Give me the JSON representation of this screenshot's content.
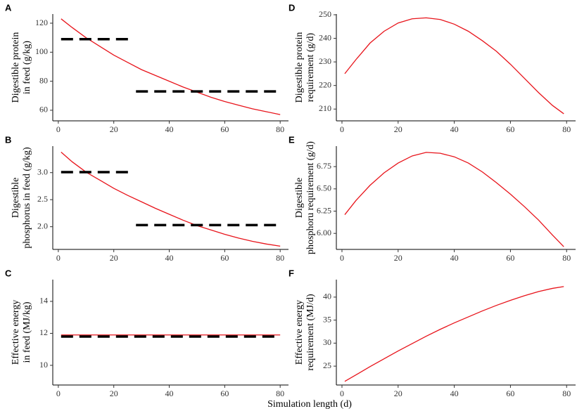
{
  "chart_data": [
    {
      "type": "line",
      "panel": "A",
      "ylabel": [
        "Digestible protein",
        "in feed (g/kg)"
      ],
      "xlim": [
        -2,
        83
      ],
      "ylim": [
        52.7,
        126.3
      ],
      "xticks": [
        0,
        20,
        40,
        60,
        80
      ],
      "yticks": [
        60,
        80,
        100,
        120
      ],
      "series": [
        {
          "color": "#e8141b",
          "linestyle": "solid",
          "x": [
            1,
            5,
            10,
            15,
            20,
            25,
            30,
            35,
            40,
            45,
            50,
            55,
            60,
            65,
            70,
            75,
            80
          ],
          "values": [
            123,
            117,
            110,
            104,
            98,
            93,
            88,
            84,
            80,
            76,
            72.5,
            69,
            66,
            63.5,
            61,
            59,
            57
          ]
        },
        {
          "color": "#000000",
          "linestyle": "dashed",
          "x": [
            1,
            27
          ],
          "values": [
            109,
            109
          ]
        },
        {
          "color": "#000000",
          "linestyle": "dashed",
          "x": [
            28,
            80
          ],
          "values": [
            73,
            73
          ]
        }
      ]
    },
    {
      "type": "line",
      "panel": "B",
      "ylabel": [
        "Digestible",
        "phosphorus in feed (g/kg)"
      ],
      "xlim": [
        -2,
        83
      ],
      "ylim": [
        1.58,
        3.49
      ],
      "xticks": [
        0,
        20,
        40,
        60,
        80
      ],
      "yticks": [
        {
          "value": 2,
          "label": "2.0"
        },
        2.5,
        {
          "value": 3,
          "label": "3.0"
        }
      ],
      "series": [
        {
          "color": "#e8141b",
          "linestyle": "solid",
          "x": [
            1,
            5,
            10,
            15,
            20,
            25,
            30,
            35,
            40,
            45,
            50,
            55,
            60,
            65,
            70,
            75,
            80
          ],
          "values": [
            3.38,
            3.2,
            3.01,
            2.86,
            2.71,
            2.58,
            2.46,
            2.34,
            2.23,
            2.12,
            2.02,
            1.94,
            1.86,
            1.79,
            1.73,
            1.68,
            1.64
          ]
        },
        {
          "color": "#000000",
          "linestyle": "dashed",
          "x": [
            1,
            27
          ],
          "values": [
            3.01,
            3.01
          ]
        },
        {
          "color": "#000000",
          "linestyle": "dashed",
          "x": [
            28,
            80
          ],
          "values": [
            2.03,
            2.03
          ]
        }
      ]
    },
    {
      "type": "line",
      "panel": "C",
      "ylabel": [
        "Effective energy",
        "in feed (MJ/kg)"
      ],
      "xlim": [
        -2,
        83
      ],
      "ylim": [
        8.77,
        15.36
      ],
      "xticks": [
        0,
        20,
        40,
        60,
        80
      ],
      "yticks": [
        10,
        12,
        14
      ],
      "series": [
        {
          "color": "#e8141b",
          "linestyle": "solid",
          "x": [
            1,
            80
          ],
          "values": [
            11.9,
            11.9
          ]
        },
        {
          "color": "#000000",
          "linestyle": "dashed",
          "x": [
            1,
            80
          ],
          "values": [
            11.8,
            11.8
          ]
        }
      ]
    },
    {
      "type": "line",
      "panel": "D",
      "ylabel": [
        "Digestible protein",
        "requirement (g/d)"
      ],
      "xlim": [
        -2,
        83.2
      ],
      "ylim": [
        205,
        250.3
      ],
      "xticks": [
        0,
        20,
        40,
        60,
        80
      ],
      "yticks": [
        210,
        220,
        230,
        240,
        250
      ],
      "series": [
        {
          "color": "#e8141b",
          "linestyle": "solid",
          "x": [
            1,
            5,
            10,
            15,
            20,
            25,
            30,
            35,
            40,
            45,
            50,
            55,
            60,
            65,
            70,
            75,
            79
          ],
          "values": [
            225,
            231,
            238,
            243,
            246.5,
            248.3,
            248.7,
            248,
            246,
            243,
            239,
            234.5,
            229,
            223,
            217,
            211.5,
            208
          ]
        }
      ]
    },
    {
      "type": "line",
      "panel": "E",
      "ylabel": [
        "Digestible",
        "phosphoru requirement (g/d)"
      ],
      "xlim": [
        -2,
        83.2
      ],
      "ylim": [
        5.82,
        6.98
      ],
      "xticks": [
        0,
        20,
        40,
        60,
        80
      ],
      "yticks": [
        {
          "value": 6,
          "label": "6.00"
        },
        6.25,
        {
          "value": 6.5,
          "label": "6.50"
        },
        6.75
      ],
      "series": [
        {
          "color": "#e8141b",
          "linestyle": "solid",
          "x": [
            1,
            5,
            10,
            15,
            20,
            25,
            30,
            35,
            40,
            45,
            50,
            55,
            60,
            65,
            70,
            75,
            79
          ],
          "values": [
            6.21,
            6.37,
            6.54,
            6.68,
            6.79,
            6.87,
            6.91,
            6.9,
            6.86,
            6.79,
            6.69,
            6.57,
            6.44,
            6.3,
            6.15,
            5.98,
            5.85
          ]
        }
      ]
    },
    {
      "type": "line",
      "panel": "F",
      "ylabel": [
        "Effective energy",
        "requirement (MJ/d)"
      ],
      "xlim": [
        -2,
        83.2
      ],
      "ylim": [
        20.9,
        43.8
      ],
      "xticks": [
        0,
        20,
        40,
        60,
        80
      ],
      "yticks": [
        25,
        30,
        35,
        40
      ],
      "series": [
        {
          "color": "#e8141b",
          "linestyle": "solid",
          "x": [
            1,
            5,
            10,
            15,
            20,
            25,
            30,
            35,
            40,
            45,
            50,
            55,
            60,
            65,
            70,
            75,
            79
          ],
          "values": [
            21.7,
            23.1,
            24.9,
            26.6,
            28.3,
            29.9,
            31.5,
            33,
            34.4,
            35.7,
            37,
            38.2,
            39.3,
            40.3,
            41.2,
            41.9,
            42.3
          ]
        }
      ]
    }
  ],
  "xlabel": "Simulation length (d)"
}
